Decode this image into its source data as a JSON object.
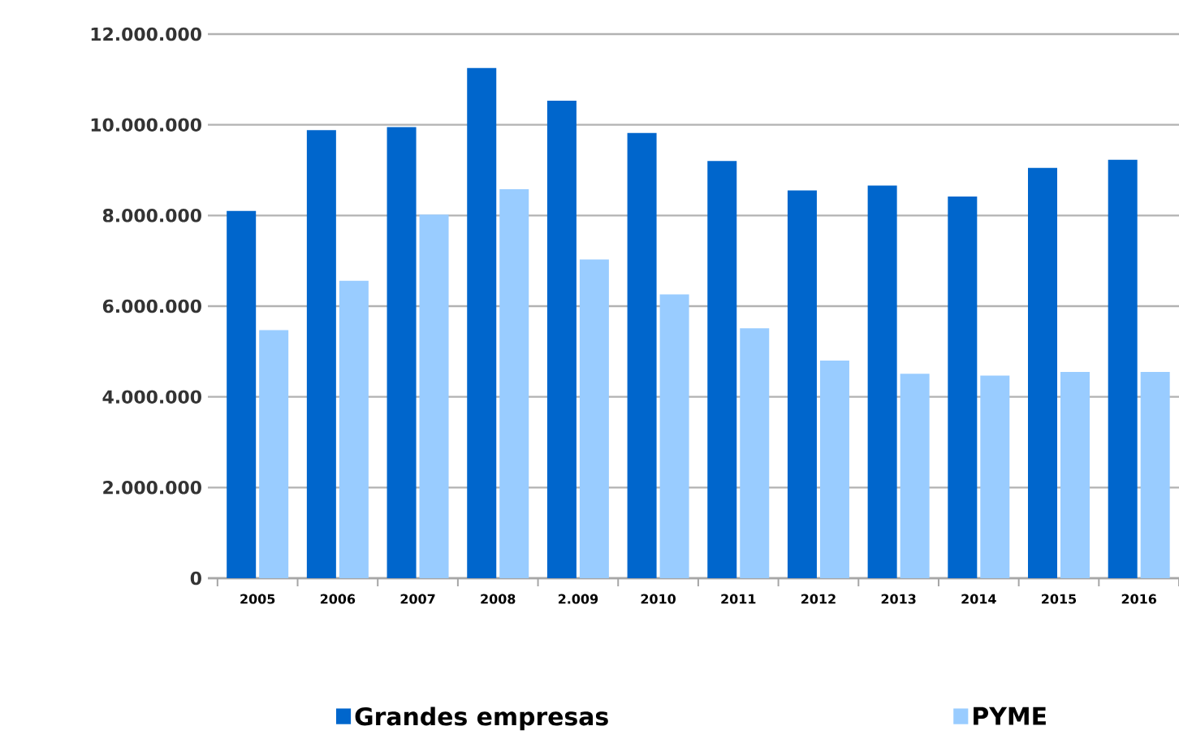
{
  "chart_data": {
    "type": "bar",
    "categories": [
      "2005",
      "2006",
      "2007",
      "2008",
      "2.009",
      "2010",
      "2011",
      "2012",
      "2013",
      "2014",
      "2015",
      "2016"
    ],
    "series": [
      {
        "name": "Grandes  empresas",
        "color": "#0066cc",
        "values": [
          8100000,
          9880000,
          9950000,
          11250000,
          10530000,
          9820000,
          9200000,
          8550000,
          8660000,
          8420000,
          9050000,
          9230000
        ]
      },
      {
        "name": "PYME",
        "color": "#99ccff",
        "values": [
          5470000,
          6560000,
          8020000,
          8580000,
          7030000,
          6260000,
          5510000,
          4800000,
          4510000,
          4470000,
          4550000,
          4550000
        ]
      }
    ],
    "ylim": [
      0,
      12000000
    ],
    "yticks": [
      0,
      {
        "value": 2000000,
        "label": "2.000.000"
      },
      {
        "value": 4000000,
        "label": "4.000.000"
      },
      {
        "value": 6000000,
        "label": "6.000.000"
      },
      {
        "value": 8000000,
        "label": "8.000.000"
      },
      {
        "value": 10000000,
        "label": "10.000.000"
      },
      {
        "value": 12000000,
        "label": "12.000.000"
      }
    ],
    "grid": "y",
    "legend": "bottom"
  }
}
